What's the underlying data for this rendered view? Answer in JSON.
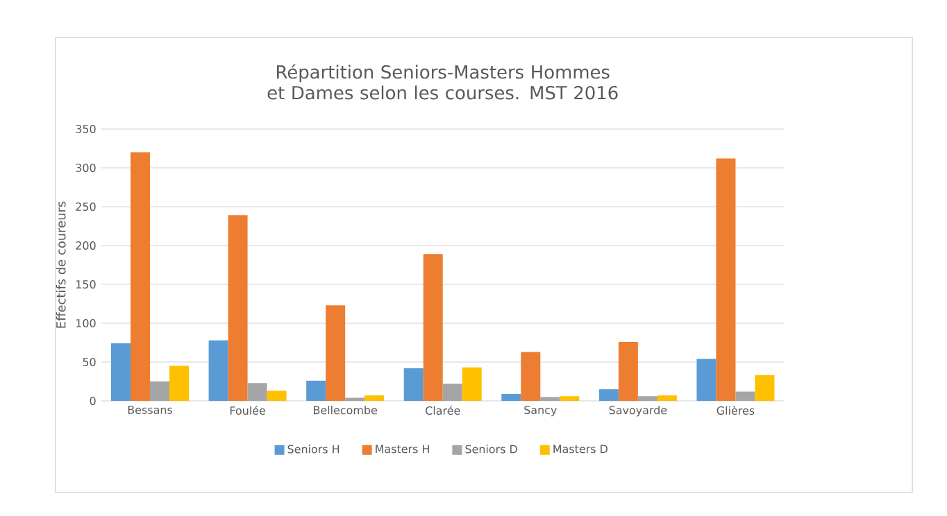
{
  "chart_data": {
    "type": "bar",
    "title": "Répartition Seniors-Masters Hommes et Dames selon les courses. MST 2016",
    "ylabel": "Effectifs de coureurs",
    "categories": [
      "Bessans",
      "Foulée",
      "Bellecombe",
      "Clarée",
      "Sancy",
      "Savoyarde",
      "Glières"
    ],
    "series": [
      {
        "name": "Seniors H",
        "color": "#5b9bd5",
        "values": [
          74,
          78,
          26,
          42,
          9,
          15,
          54
        ]
      },
      {
        "name": "Masters H",
        "color": "#ed7d31",
        "values": [
          320,
          239,
          123,
          189,
          63,
          76,
          312
        ]
      },
      {
        "name": "Seniors D",
        "color": "#a5a5a5",
        "values": [
          25,
          23,
          4,
          22,
          5,
          6,
          12
        ]
      },
      {
        "name": "Masters D",
        "color": "#ffc000",
        "values": [
          45,
          13,
          7,
          43,
          6,
          7,
          33
        ]
      }
    ],
    "ylim": [
      0,
      350
    ],
    "yticks": [
      0,
      50,
      100,
      150,
      200,
      250,
      300,
      350
    ],
    "grid": "y",
    "legend": "bottom"
  }
}
